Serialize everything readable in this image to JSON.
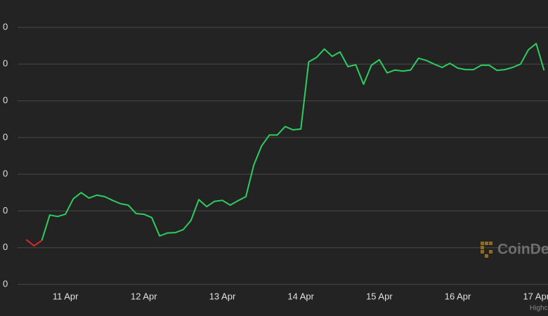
{
  "chart_data": {
    "type": "line",
    "x": [
      10.5,
      10.6,
      10.7,
      10.8,
      10.9,
      11.0,
      11.1,
      11.2,
      11.3,
      11.4,
      11.5,
      11.6,
      11.7,
      11.8,
      11.9,
      12.0,
      12.1,
      12.2,
      12.3,
      12.4,
      12.5,
      12.6,
      12.7,
      12.8,
      12.9,
      13.0,
      13.1,
      13.2,
      13.3,
      13.4,
      13.5,
      13.6,
      13.7,
      13.8,
      13.9,
      14.0,
      14.1,
      14.2,
      14.3,
      14.4,
      14.5,
      14.6,
      14.7,
      14.8,
      14.9,
      15.0,
      15.1,
      15.2,
      15.3,
      15.4,
      15.5,
      15.6,
      15.7,
      15.8,
      15.9,
      16.0,
      16.1,
      16.2,
      16.3,
      16.4,
      16.5,
      16.6,
      16.7,
      16.8,
      16.9,
      17.0,
      17.1
    ],
    "series": [
      {
        "color": "#2ecc5f",
        "values": [
          null,
          null,
          12.0,
          18.9,
          18.5,
          19.1,
          23.3,
          25.0,
          23.5,
          24.3,
          23.9,
          22.9,
          22.0,
          21.6,
          19.3,
          19.1,
          18.2,
          13.2,
          14.0,
          14.1,
          14.9,
          17.4,
          23.1,
          21.2,
          22.6,
          22.9,
          21.6,
          22.8,
          23.9,
          32.5,
          37.7,
          40.7,
          40.7,
          43.0,
          42.1,
          42.3,
          60.6,
          61.8,
          64.1,
          62.1,
          63.3,
          59.3,
          59.8,
          54.5,
          59.7,
          61.2,
          57.6,
          58.4,
          58.1,
          58.4,
          61.6,
          61.0,
          60.0,
          59.1,
          60.2,
          58.9,
          58.5,
          58.5,
          59.7,
          59.7,
          58.3,
          58.5,
          59.1,
          60.0,
          63.9,
          65.6,
          58.3
        ]
      },
      {
        "color": "#d92b2b",
        "values": [
          12.2,
          10.5,
          12.0,
          null,
          null,
          null,
          null,
          null,
          null,
          null,
          null,
          null,
          null,
          null,
          null,
          null,
          null,
          null,
          null,
          null,
          null,
          null,
          null,
          null,
          null,
          null,
          null,
          null,
          null,
          null,
          null,
          null,
          null,
          null,
          null,
          null,
          null,
          null,
          null,
          null,
          null,
          null,
          null,
          null,
          null,
          null,
          null,
          null,
          null,
          null,
          null,
          null,
          null,
          null,
          null,
          null,
          null,
          null,
          null,
          null,
          null,
          null,
          null,
          null,
          null,
          null,
          null
        ]
      }
    ],
    "xlim": [
      10.39,
      17.15
    ],
    "xticks": [
      {
        "value": 11,
        "label": "11 Apr"
      },
      {
        "value": 12,
        "label": "12 Apr"
      },
      {
        "value": 13,
        "label": "13 Apr"
      },
      {
        "value": 14,
        "label": "14 Apr"
      },
      {
        "value": 15,
        "label": "15 Apr"
      },
      {
        "value": 16,
        "label": "16 Apr"
      },
      {
        "value": 17,
        "label": "17 Apr"
      }
    ],
    "ylim": [
      0,
      70
    ],
    "yticks": [
      {
        "value": 0,
        "label": "0"
      },
      {
        "value": 10,
        "label": "0"
      },
      {
        "value": 20,
        "label": "0"
      },
      {
        "value": 30,
        "label": "0"
      },
      {
        "value": 40,
        "label": "0"
      },
      {
        "value": 50,
        "label": "0"
      },
      {
        "value": 60,
        "label": "0"
      },
      {
        "value": 70,
        "label": "0"
      }
    ],
    "grid": true,
    "watermark": "CoinDe",
    "credits": "Highc"
  }
}
